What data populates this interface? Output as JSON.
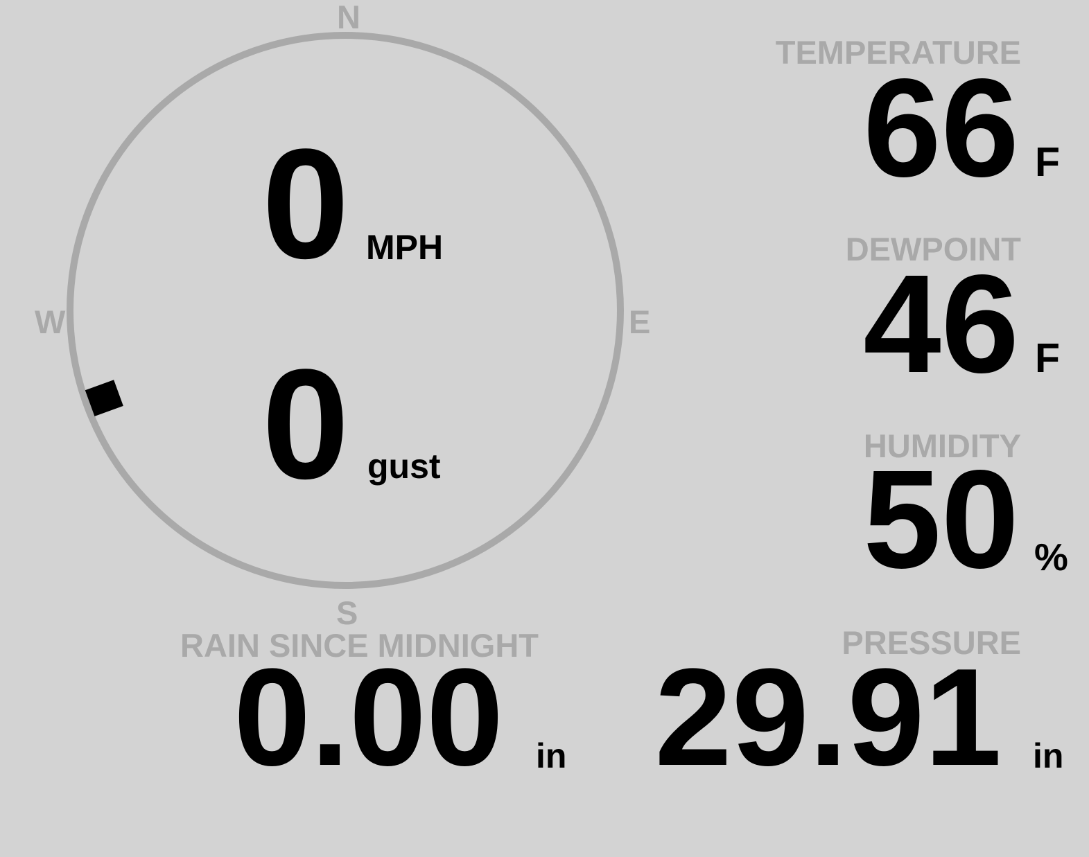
{
  "wind": {
    "speed": "0",
    "speed_unit": "MPH",
    "gust": "0",
    "gust_unit": "gust",
    "direction_degrees": 250,
    "compass": {
      "n": "N",
      "e": "E",
      "s": "S",
      "w": "W"
    }
  },
  "temperature": {
    "label": "TEMPERATURE",
    "value": "66",
    "unit": "F"
  },
  "dewpoint": {
    "label": "DEWPOINT",
    "value": "46",
    "unit": "F"
  },
  "humidity": {
    "label": "HUMIDITY",
    "value": "50",
    "unit": "%"
  },
  "rain": {
    "label": "RAIN SINCE MIDNIGHT",
    "value": "0.00",
    "unit": "in"
  },
  "pressure": {
    "label": "PRESSURE",
    "value": "29.91",
    "unit": "in"
  },
  "colors": {
    "background": "#d3d3d3",
    "label": "#a9a9a9",
    "value": "#000000"
  }
}
